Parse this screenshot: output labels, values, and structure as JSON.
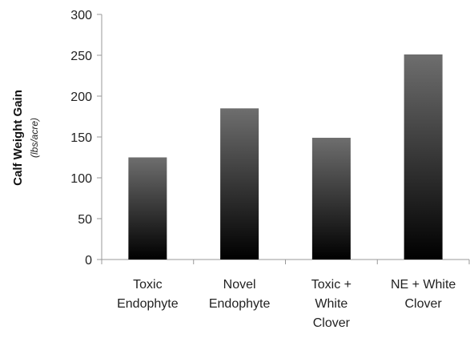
{
  "chart_data": {
    "type": "bar",
    "categories": [
      [
        "Toxic",
        "Endophyte"
      ],
      [
        "Novel",
        "Endophyte"
      ],
      [
        "Toxic +",
        "White",
        "Clover"
      ],
      [
        "NE + White",
        "Clover"
      ]
    ],
    "values": [
      125,
      185,
      149,
      251
    ],
    "ylabel": "Calf Weight Gain",
    "ylabel_sub": "(lbs/acre)",
    "ylim": [
      0,
      300
    ],
    "yticks": [
      0,
      50,
      100,
      150,
      200,
      250,
      300
    ],
    "grid": false,
    "bar_gradient": [
      "#6e6e6e",
      "#000000"
    ]
  }
}
